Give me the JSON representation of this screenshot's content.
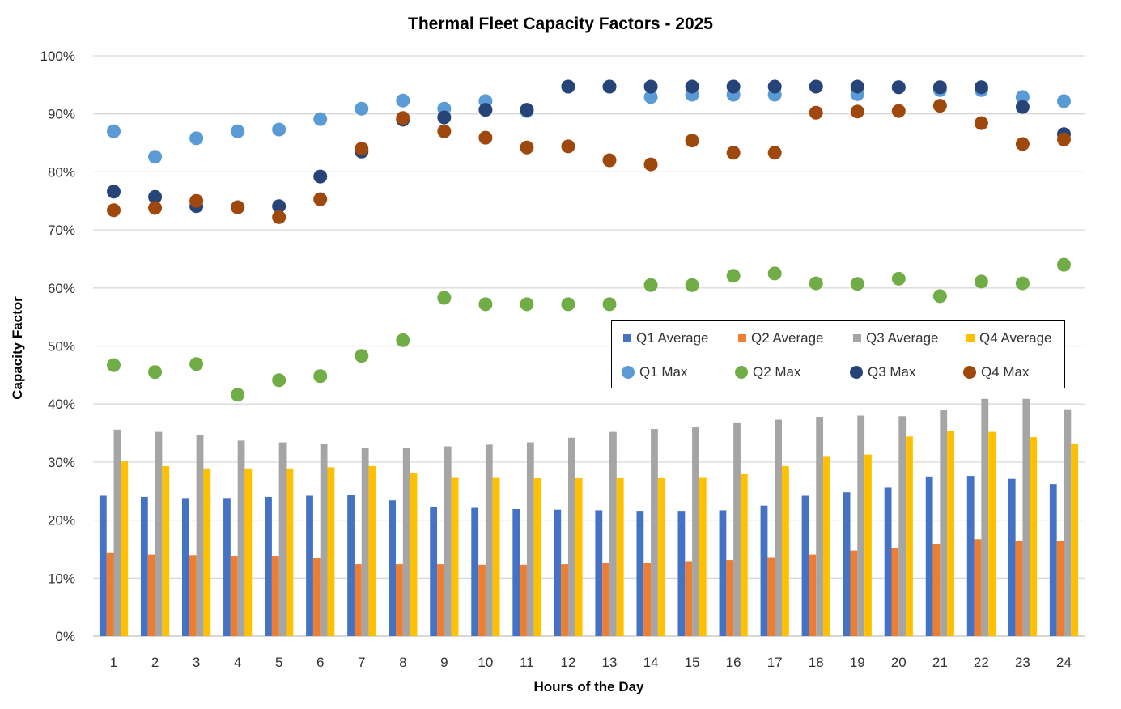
{
  "chart_data": {
    "type": "bar+scatter",
    "title": "Thermal Fleet Capacity Factors - 2025",
    "xlabel": "Hours of the Day",
    "ylabel": "Capacity Factor",
    "ylim": [
      0,
      100
    ],
    "yticks": [
      "0%",
      "10%",
      "20%",
      "30%",
      "40%",
      "50%",
      "60%",
      "70%",
      "80%",
      "90%",
      "100%"
    ],
    "grid": true,
    "legend_position": "center-right",
    "categories": [
      "1",
      "2",
      "3",
      "4",
      "5",
      "6",
      "7",
      "8",
      "9",
      "10",
      "11",
      "12",
      "13",
      "14",
      "15",
      "16",
      "17",
      "18",
      "19",
      "20",
      "21",
      "22",
      "23",
      "24"
    ],
    "bar_series": [
      {
        "name": "Q1 Average",
        "color": "#4472C4",
        "values": [
          24.2,
          24.0,
          23.8,
          23.8,
          24.0,
          24.2,
          24.3,
          23.4,
          22.3,
          22.1,
          21.9,
          21.8,
          21.7,
          21.6,
          21.6,
          21.7,
          22.5,
          24.2,
          24.8,
          25.6,
          27.5,
          27.6,
          27.1,
          26.2
        ]
      },
      {
        "name": "Q2 Average",
        "color": "#ED7D31",
        "values": [
          14.4,
          14.0,
          13.9,
          13.8,
          13.8,
          13.4,
          12.4,
          12.4,
          12.4,
          12.3,
          12.3,
          12.4,
          12.6,
          12.6,
          12.9,
          13.1,
          13.6,
          14.0,
          14.7,
          15.2,
          15.9,
          16.7,
          16.4,
          16.4
        ]
      },
      {
        "name": "Q3 Average",
        "color": "#A5A5A5",
        "values": [
          35.6,
          35.2,
          34.7,
          33.7,
          33.4,
          33.2,
          32.4,
          32.4,
          32.7,
          33.0,
          33.4,
          34.2,
          35.2,
          35.7,
          36.0,
          36.7,
          37.3,
          37.8,
          38.0,
          37.9,
          38.9,
          40.9,
          40.9,
          39.1
        ]
      },
      {
        "name": "Q4 Average",
        "color": "#FFC000",
        "values": [
          30.1,
          29.3,
          28.9,
          28.9,
          28.9,
          29.1,
          29.3,
          28.1,
          27.4,
          27.4,
          27.3,
          27.3,
          27.3,
          27.3,
          27.4,
          27.9,
          29.3,
          30.9,
          31.3,
          34.4,
          35.3,
          35.2,
          34.3,
          33.2
        ]
      }
    ],
    "scatter_series": [
      {
        "name": "Q1 Max",
        "color": "#5B9BD5",
        "values": [
          87.0,
          82.6,
          85.8,
          87.0,
          87.3,
          89.1,
          90.9,
          92.3,
          90.9,
          92.2,
          90.5,
          94.7,
          94.7,
          92.9,
          93.3,
          93.3,
          93.3,
          94.7,
          93.4,
          94.6,
          94.1,
          94.1,
          92.9,
          92.2
        ]
      },
      {
        "name": "Q2 Max",
        "color": "#70AD47",
        "values": [
          46.7,
          45.5,
          46.9,
          41.6,
          44.1,
          44.8,
          48.3,
          51.0,
          58.3,
          57.2,
          57.2,
          57.2,
          57.2,
          60.5,
          60.5,
          62.1,
          62.5,
          60.8,
          60.7,
          61.6,
          58.6,
          61.1,
          60.8,
          64.0
        ]
      },
      {
        "name": "Q3 Max",
        "color": "#264478",
        "values": [
          76.6,
          75.7,
          74.1,
          73.9,
          74.1,
          79.2,
          83.5,
          89.0,
          89.4,
          90.7,
          90.7,
          94.7,
          94.7,
          94.7,
          94.7,
          94.7,
          94.7,
          94.7,
          94.7,
          94.6,
          94.6,
          94.6,
          91.2,
          86.5
        ]
      },
      {
        "name": "Q4 Max",
        "color": "#9E480E",
        "values": [
          73.4,
          73.8,
          75.0,
          73.9,
          72.2,
          75.3,
          84.0,
          89.3,
          87.0,
          85.9,
          84.2,
          84.4,
          82.0,
          81.3,
          85.4,
          83.3,
          83.3,
          90.2,
          90.4,
          90.5,
          91.4,
          88.4,
          84.8,
          85.6
        ]
      }
    ]
  }
}
